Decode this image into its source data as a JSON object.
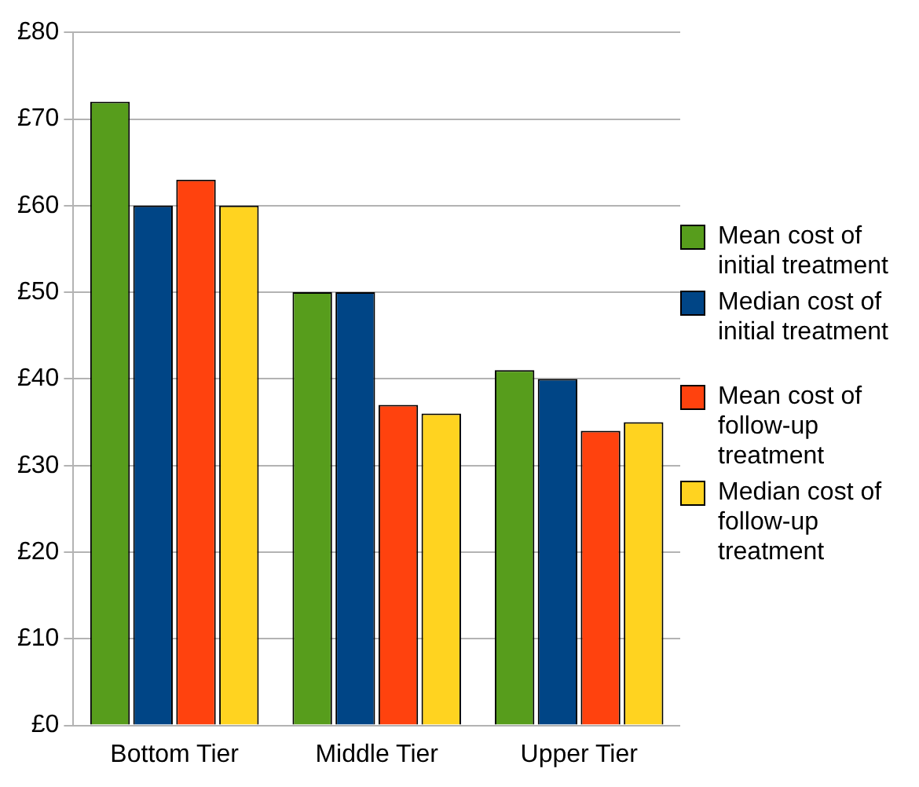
{
  "chart_data": {
    "type": "bar",
    "categories": [
      "Bottom Tier",
      "Middle Tier",
      "Upper Tier"
    ],
    "series": [
      {
        "name": "Mean cost of initial treatment",
        "color": "#579d1c",
        "values": [
          72,
          50,
          41
        ]
      },
      {
        "name": "Median cost of initial treatment",
        "color": "#004586",
        "values": [
          60,
          50,
          40
        ]
      },
      {
        "name": "Mean cost of follow-up treatment",
        "color": "#ff420e",
        "values": [
          63,
          37,
          34
        ]
      },
      {
        "name": "Median cost of follow-up treatment",
        "color": "#ffd320",
        "values": [
          60,
          36,
          35
        ]
      }
    ],
    "ylim": [
      0,
      80
    ],
    "yticks": [
      {
        "value": 0,
        "label": "£0"
      },
      {
        "value": 10,
        "label": "£10"
      },
      {
        "value": 20,
        "label": "£20"
      },
      {
        "value": 30,
        "label": "£30"
      },
      {
        "value": 40,
        "label": "£40"
      },
      {
        "value": 50,
        "label": "£50"
      },
      {
        "value": 60,
        "label": "£60"
      },
      {
        "value": 70,
        "label": "£70"
      },
      {
        "value": 80,
        "label": "£80"
      }
    ],
    "grid": "y",
    "legend": "right"
  }
}
